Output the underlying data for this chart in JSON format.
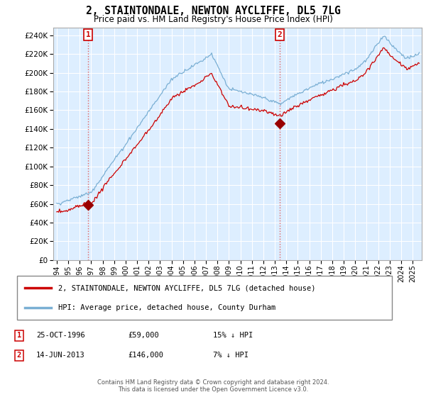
{
  "title": "2, STAINTONDALE, NEWTON AYCLIFFE, DL5 7LG",
  "subtitle": "Price paid vs. HM Land Registry's House Price Index (HPI)",
  "ylabel_values": [
    0,
    20000,
    40000,
    60000,
    80000,
    100000,
    120000,
    140000,
    160000,
    180000,
    200000,
    220000,
    240000
  ],
  "ylim": [
    0,
    248000
  ],
  "sale1_price": 59000,
  "sale1_hpi_pct": "15% ↓ HPI",
  "sale1_date_str": "25-OCT-1996",
  "sale2_price": 146000,
  "sale2_hpi_pct": "7% ↓ HPI",
  "sale2_date_str": "14-JUN-2013",
  "legend_line1": "2, STAINTONDALE, NEWTON AYCLIFFE, DL5 7LG (detached house)",
  "legend_line2": "HPI: Average price, detached house, County Durham",
  "footer": "Contains HM Land Registry data © Crown copyright and database right 2024.\nThis data is licensed under the Open Government Licence v3.0.",
  "price_line_color": "#cc0000",
  "hpi_line_color": "#7aafd4",
  "sale_marker_color": "#990000",
  "vline_color": "#e06060",
  "bg_color": "#ddeeff",
  "grid_color": "#ffffff",
  "xtick_start": 1994,
  "xtick_end": 2026
}
